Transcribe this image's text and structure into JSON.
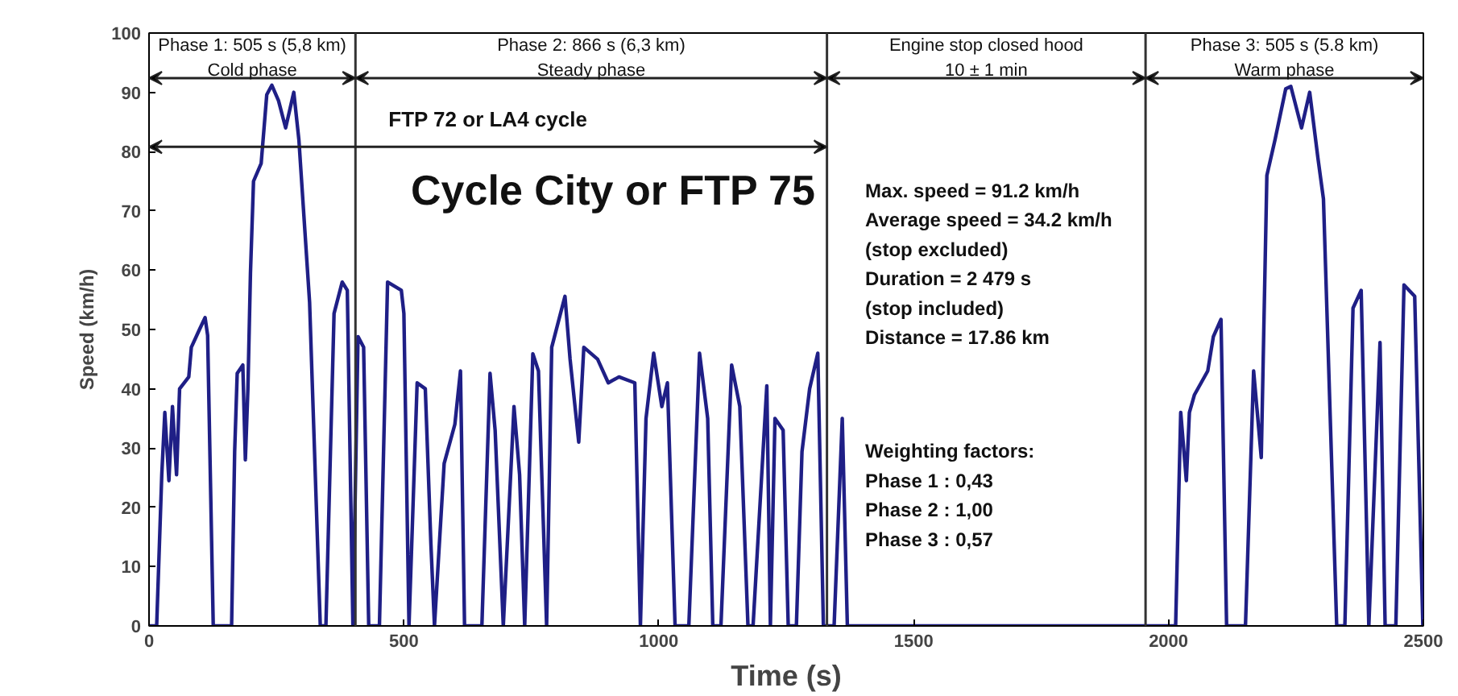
{
  "chart_data": {
    "type": "line",
    "xlabel": "Time (s)",
    "ylabel": "Speed (km/h)",
    "xlim": [
      0,
      2500
    ],
    "xticks": [
      0,
      500,
      1000,
      1500,
      2000,
      2500
    ],
    "ylim": [
      0,
      100
    ],
    "yticks": [
      0,
      10,
      20,
      30,
      40,
      50,
      60,
      70,
      80,
      90,
      100
    ],
    "grid": false,
    "marker": "none",
    "line_style": "solid",
    "x": [
      0,
      15,
      25,
      31,
      39,
      46,
      54,
      60,
      78,
      83,
      99,
      110,
      115,
      126,
      162,
      168,
      173,
      184,
      189,
      194,
      199,
      205,
      220,
      231,
      241,
      254,
      268,
      284,
      294,
      315,
      336,
      347,
      363,
      379,
      389,
      400,
      410,
      421,
      431,
      452,
      468,
      495,
      500,
      510,
      526,
      542,
      553,
      560,
      579,
      600,
      611,
      619,
      653,
      669,
      679,
      695,
      716,
      727,
      737,
      753,
      764,
      780,
      790,
      816,
      826,
      843,
      853,
      880,
      901,
      922,
      953,
      964,
      975,
      990,
      1006,
      1017,
      1032,
      1059,
      1080,
      1096,
      1106,
      1122,
      1143,
      1159,
      1175,
      1185,
      1212,
      1219,
      1228,
      1244,
      1254,
      1270,
      1281,
      1296,
      1312,
      1323,
      1344,
      1360,
      1370,
      2014,
      2024,
      2035,
      2041,
      2051,
      2077,
      2088,
      2103,
      2114,
      2151,
      2167,
      2182,
      2193,
      2209,
      2230,
      2240,
      2261,
      2277,
      2293,
      2304,
      2330,
      2346,
      2362,
      2378,
      2393,
      2415,
      2425,
      2446,
      2462,
      2483,
      2499
    ],
    "series": [
      {
        "color": "#1f1f86",
        "values": [
          0,
          0,
          25.5,
          36,
          24.5,
          37,
          25.5,
          40,
          42,
          47,
          50,
          52,
          49,
          0,
          0,
          29.4,
          42.6,
          44,
          28,
          40,
          59.5,
          75,
          78,
          89.6,
          91.2,
          88.6,
          84,
          90,
          82,
          54.6,
          0,
          0,
          52.7,
          58,
          56.6,
          0,
          48.8,
          47,
          0,
          0,
          58,
          56.6,
          52.7,
          0,
          41,
          40,
          13.8,
          0,
          27.4,
          34,
          43,
          0,
          0,
          42.6,
          33,
          0,
          37,
          25.5,
          0,
          45.9,
          43,
          0,
          47,
          55.6,
          45,
          31,
          47,
          45,
          41,
          42,
          41,
          0,
          35,
          46,
          37,
          41,
          0,
          0,
          46,
          35,
          0,
          0,
          44,
          37,
          0,
          0,
          40.5,
          0,
          35,
          33,
          0,
          0,
          29.4,
          40,
          46,
          0,
          0,
          35,
          0,
          0,
          36,
          24.5,
          36,
          39,
          43,
          48.8,
          51.7,
          0,
          0,
          43,
          28.4,
          76,
          82,
          90.6,
          91,
          84,
          90,
          79,
          72,
          0,
          0,
          53.6,
          56.6,
          0,
          47.8,
          0,
          0,
          57.5,
          55.6,
          0
        ]
      }
    ],
    "ref_lines": [
      {
        "axis": "x",
        "value": 405,
        "color": "#333333"
      },
      {
        "axis": "x",
        "value": 1330,
        "color": "#333333"
      },
      {
        "axis": "x",
        "value": 1955,
        "color": "#333333"
      }
    ],
    "annotations": [
      "Phase 1: 505 s (5,8 km)\nCold phase",
      "Phase 2: 866 s (6,3 km)\nSteady phase",
      "Engine stop closed hood\n10 ± 1 min",
      "Phase 3: 505 s (5.8 km)\nWarm phase",
      "FTP 72 or LA4 cycle",
      "Cycle City or FTP 75",
      "Max. speed = 91.2 km/h\nAverage speed = 34.2 km/h\n(stop excluded)\nDuration = 2 479 s\n(stop included)\nDistance = 17.86 km",
      "Weighting factors:\nPhase 1 : 0,43\nPhase 2 : 1,00\nPhase 3 : 0,57"
    ]
  }
}
